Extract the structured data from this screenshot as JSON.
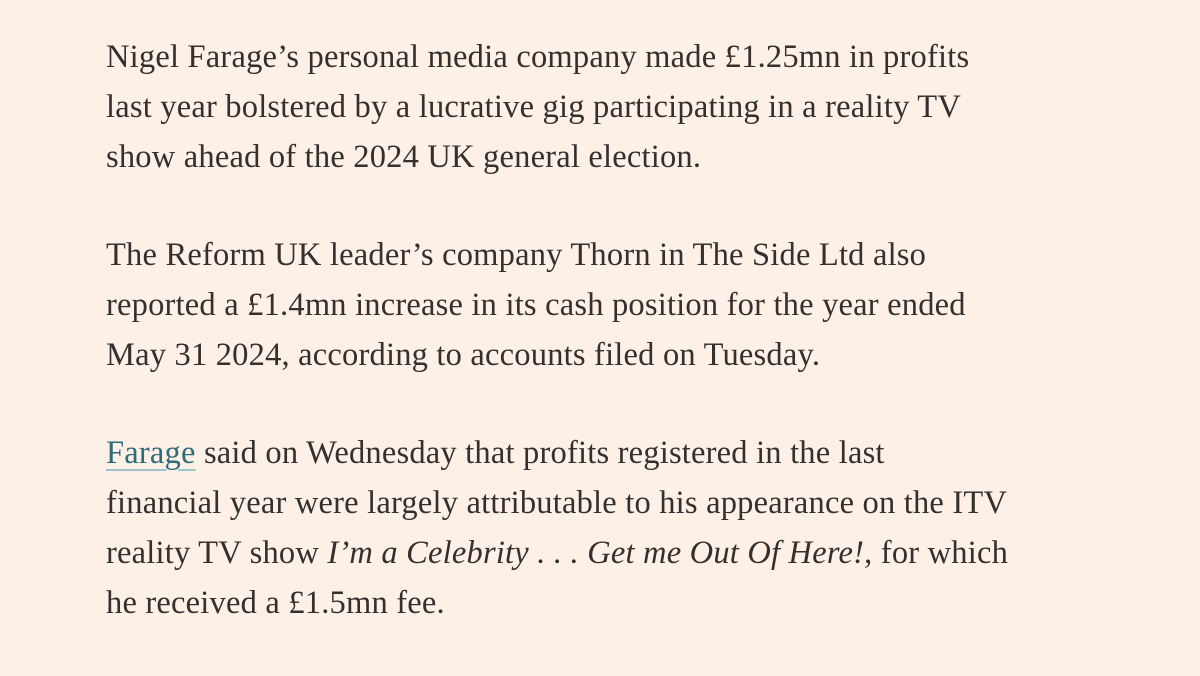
{
  "article": {
    "paragraphs": [
      {
        "lines": [
          [
            {
              "text": "Nigel Farage’s personal media company made £1.25mn in profits"
            }
          ],
          [
            {
              "text": "last year bolstered by a lucrative gig participating in a reality TV"
            }
          ],
          [
            {
              "text": "show ahead of the 2024 UK general election."
            }
          ]
        ]
      },
      {
        "lines": [
          [
            {
              "text": "The Reform UK leader’s company Thorn in The Side Ltd also"
            }
          ],
          [
            {
              "text": "reported a £1.4mn increase in its cash position for the year ended"
            }
          ],
          [
            {
              "text": "May 31 2024, according to accounts filed on Tuesday."
            }
          ]
        ]
      },
      {
        "lines": [
          [
            {
              "text": "Farage",
              "style": "link"
            },
            {
              "text": " said on Wednesday that profits registered in the last"
            }
          ],
          [
            {
              "text": "financial year were largely attributable to his appearance on the ITV"
            }
          ],
          [
            {
              "text": "reality TV show "
            },
            {
              "text": "I’m a Celebrity . . . Get me Out Of Here!",
              "style": "italic"
            },
            {
              "text": ", for which"
            }
          ],
          [
            {
              "text": "he received a £1.5mn fee."
            }
          ]
        ]
      }
    ]
  }
}
